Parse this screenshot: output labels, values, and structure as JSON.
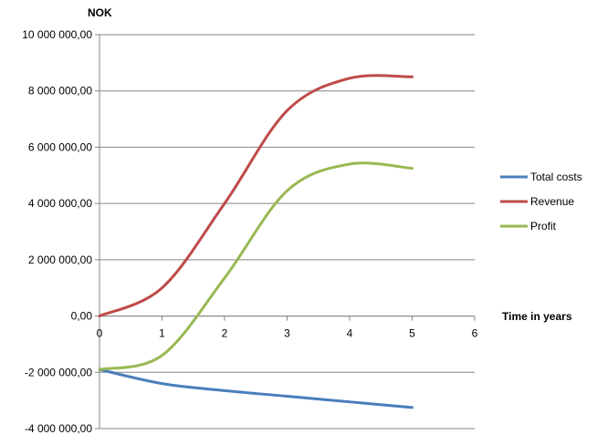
{
  "chart_data": {
    "type": "line",
    "ylabel": "NOK",
    "xlabel": "Time in years",
    "xlim": [
      0,
      6
    ],
    "ylim": [
      -4000000,
      10000000
    ],
    "x_ticks": [
      0,
      1,
      2,
      3,
      4,
      5,
      6
    ],
    "x_tick_labels": [
      "0",
      "1",
      "2",
      "3",
      "4",
      "5",
      "6"
    ],
    "y_ticks": [
      -4000000,
      -2000000,
      0,
      2000000,
      4000000,
      6000000,
      8000000,
      10000000
    ],
    "y_tick_labels": [
      "-4 000 000,00",
      "-2 000 000,00",
      "0,00",
      "2 000 000,00",
      "4 000 000,00",
      "6 000 000,00",
      "8 000 000,00",
      "10 000 000,00"
    ],
    "grid": true,
    "legend_position": "right",
    "series": [
      {
        "name": "Total costs",
        "color": "#4a7ebb",
        "x": [
          0,
          1,
          2,
          3,
          4,
          5
        ],
        "values": [
          -1900000,
          -2400000,
          -2650000,
          -2850000,
          -3050000,
          -3250000
        ]
      },
      {
        "name": "Revenue",
        "color": "#be4b48",
        "x": [
          0,
          1,
          2,
          3,
          4,
          5
        ],
        "values": [
          0,
          1000000,
          4000000,
          7300000,
          8450000,
          8500000
        ]
      },
      {
        "name": "Profit",
        "color": "#98b954",
        "x": [
          0,
          1,
          2,
          3,
          4,
          5
        ],
        "values": [
          -1900000,
          -1400000,
          1350000,
          4450000,
          5400000,
          5250000
        ]
      }
    ]
  }
}
